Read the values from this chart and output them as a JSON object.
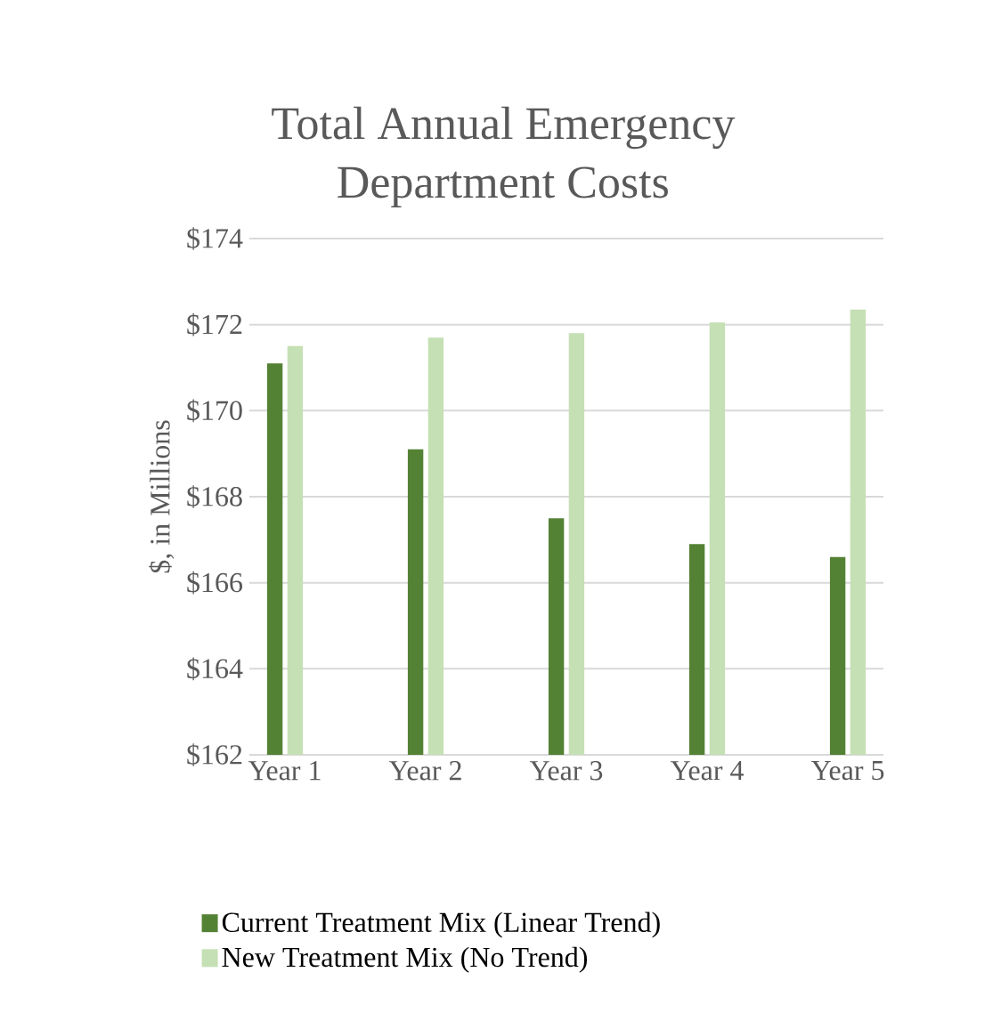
{
  "chart_data": {
    "type": "bar",
    "title": "Total Annual Emergency Department Costs",
    "ylabel": "$, in Millions",
    "categories": [
      "Year 1",
      "Year 2",
      "Year 3",
      "Year 4",
      "Year 5"
    ],
    "series": [
      {
        "name": "Current Treatment Mix (Linear Trend)",
        "color": "#548235",
        "values": [
          171.1,
          169.1,
          167.5,
          166.9,
          166.6
        ]
      },
      {
        "name": "New Treatment Mix (No Trend)",
        "color": "#c5e0b4",
        "values": [
          171.5,
          171.7,
          171.8,
          172.05,
          172.35
        ]
      }
    ],
    "ylim": [
      162,
      174
    ],
    "yticks": [
      {
        "value": 162,
        "label": "$162"
      },
      {
        "value": 164,
        "label": "$164"
      },
      {
        "value": 166,
        "label": "$166"
      },
      {
        "value": 168,
        "label": "$168"
      },
      {
        "value": 170,
        "label": "$170"
      },
      {
        "value": 172,
        "label": "$172"
      },
      {
        "value": 174,
        "label": "$174"
      }
    ],
    "grid": "y",
    "legend": "bottom"
  }
}
